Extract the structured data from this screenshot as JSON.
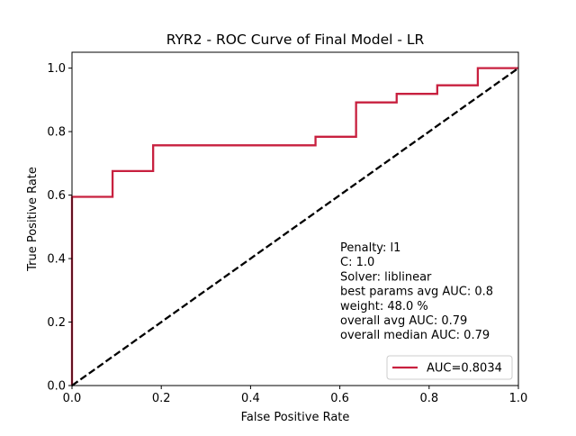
{
  "chart_data": {
    "type": "line",
    "title": "RYR2 - ROC Curve of Final Model - LR",
    "xlabel": "False Positive Rate",
    "ylabel": "True Positive Rate",
    "xlim": [
      0.0,
      1.0
    ],
    "ylim": [
      0.0,
      1.05
    ],
    "xticks": [
      "0.0",
      "0.2",
      "0.4",
      "0.6",
      "0.8",
      "1.0"
    ],
    "yticks": [
      "0.0",
      "0.2",
      "0.4",
      "0.6",
      "0.8",
      "1.0"
    ],
    "grid": false,
    "legend_position": "lower-right",
    "series": [
      {
        "name": "AUC=0.8034",
        "color": "#c8203f",
        "style": "solid",
        "x": [
          0.0,
          0.0,
          0.0,
          0.0909,
          0.0909,
          0.1818,
          0.1818,
          0.5455,
          0.5455,
          0.6364,
          0.6364,
          0.7273,
          0.7273,
          0.8182,
          0.8182,
          0.9091,
          0.9091,
          1.0
        ],
        "y": [
          0.0,
          0.5946,
          0.5946,
          0.5946,
          0.6757,
          0.6757,
          0.7568,
          0.7568,
          0.7838,
          0.7838,
          0.8919,
          0.8919,
          0.9189,
          0.9189,
          0.9459,
          0.9459,
          1.0,
          1.0
        ]
      },
      {
        "color": "#000000",
        "style": "dashed",
        "x": [
          0.0,
          1.0
        ],
        "y": [
          0.0,
          1.0
        ]
      }
    ],
    "annotations": [
      "Penalty: l1",
      "C: 1.0",
      "Solver: liblinear",
      "best params avg AUC: 0.8",
      "weight: 48.0 %",
      "overall avg AUC: 0.79",
      "overall median AUC: 0.79"
    ]
  }
}
